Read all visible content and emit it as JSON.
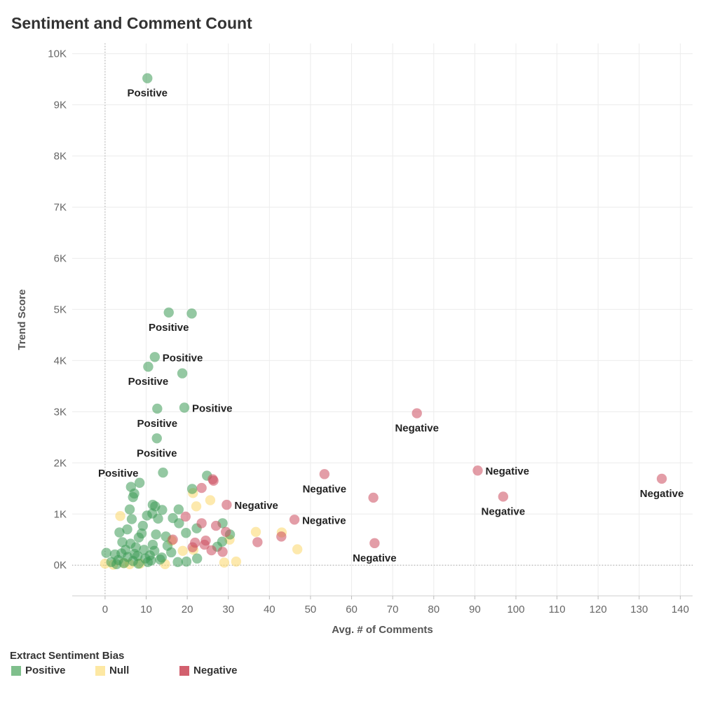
{
  "chart_data": {
    "type": "scatter",
    "title": "Sentiment and Comment Count",
    "xlabel": "Avg. # of Comments",
    "ylabel": "Trend Score",
    "xlim": [
      -8,
      143
    ],
    "ylim": [
      -600,
      10200
    ],
    "x_ticks": [
      0,
      10,
      20,
      30,
      40,
      50,
      60,
      70,
      80,
      90,
      100,
      110,
      120,
      130,
      140
    ],
    "y_ticks": [
      0,
      1000,
      2000,
      3000,
      4000,
      5000,
      6000,
      7000,
      8000,
      9000,
      10000
    ],
    "y_tick_labels": [
      "0K",
      "1K",
      "2K",
      "3K",
      "4K",
      "5K",
      "6K",
      "7K",
      "8K",
      "9K",
      "10K"
    ],
    "grid": true,
    "legend": {
      "title": "Extract Sentiment Bias",
      "position": "bottom-left",
      "items": [
        {
          "label": "Positive",
          "color": "#7fbf8c"
        },
        {
          "label": "Null",
          "color": "#fde8a3"
        },
        {
          "label": "Negative",
          "color": "#d2606e"
        }
      ]
    },
    "series": [
      {
        "name": "Positive",
        "color": "#3d9a55",
        "points": [
          [
            10.3,
            9520
          ],
          [
            15.5,
            4940
          ],
          [
            21.1,
            4920
          ],
          [
            12.1,
            4070
          ],
          [
            10.5,
            3880
          ],
          [
            18.8,
            3750
          ],
          [
            12.7,
            3060
          ],
          [
            19.3,
            3080
          ],
          [
            12.6,
            2480
          ],
          [
            14.1,
            1810
          ],
          [
            8.4,
            1610
          ],
          [
            6.3,
            1530
          ],
          [
            21.2,
            1490
          ],
          [
            24.8,
            1750
          ],
          [
            7.1,
            1400
          ],
          [
            6.8,
            1330
          ],
          [
            11.6,
            1180
          ],
          [
            12.2,
            1150
          ],
          [
            13.9,
            1080
          ],
          [
            17.9,
            1090
          ],
          [
            6.0,
            1090
          ],
          [
            11.5,
            1010
          ],
          [
            10.2,
            970
          ],
          [
            16.5,
            920
          ],
          [
            6.5,
            900
          ],
          [
            12.9,
            910
          ],
          [
            18.0,
            820
          ],
          [
            28.6,
            820
          ],
          [
            22.3,
            720
          ],
          [
            30.4,
            600
          ],
          [
            9.2,
            770
          ],
          [
            5.4,
            700
          ],
          [
            3.5,
            640
          ],
          [
            14.8,
            560
          ],
          [
            19.7,
            630
          ],
          [
            8.2,
            540
          ],
          [
            12.4,
            600
          ],
          [
            27.3,
            360
          ],
          [
            28.5,
            460
          ],
          [
            4.2,
            450
          ],
          [
            11.6,
            400
          ],
          [
            7.5,
            350
          ],
          [
            0.3,
            240
          ],
          [
            2.4,
            210
          ],
          [
            16.1,
            250
          ],
          [
            22.4,
            130
          ],
          [
            17.7,
            60
          ],
          [
            19.8,
            70
          ],
          [
            5.5,
            160
          ],
          [
            9.8,
            130
          ],
          [
            3.2,
            100
          ],
          [
            6.8,
            80
          ],
          [
            1.5,
            60
          ],
          [
            4.6,
            40
          ],
          [
            8.1,
            30
          ],
          [
            11.2,
            90
          ],
          [
            13.4,
            110
          ],
          [
            2.8,
            20
          ],
          [
            7.2,
            220
          ],
          [
            9.5,
            300
          ],
          [
            10.9,
            190
          ],
          [
            12.0,
            280
          ],
          [
            13.8,
            150
          ],
          [
            5.0,
            300
          ],
          [
            6.2,
            420
          ],
          [
            8.9,
            620
          ],
          [
            15.2,
            380
          ],
          [
            4.0,
            230
          ],
          [
            7.9,
            180
          ],
          [
            10.4,
            60
          ]
        ]
      },
      {
        "name": "Null",
        "color": "#fcd76a",
        "points": [
          [
            3.7,
            960
          ],
          [
            21.4,
            1410
          ],
          [
            25.6,
            1270
          ],
          [
            22.2,
            1150
          ],
          [
            36.7,
            650
          ],
          [
            43.0,
            640
          ],
          [
            30.3,
            500
          ],
          [
            46.8,
            310
          ],
          [
            31.9,
            70
          ],
          [
            29.0,
            50
          ],
          [
            21.5,
            300
          ],
          [
            18.9,
            280
          ],
          [
            0.0,
            30
          ],
          [
            2.0,
            10
          ],
          [
            4.5,
            40
          ],
          [
            6.0,
            20
          ],
          [
            8.5,
            30
          ],
          [
            14.6,
            20
          ],
          [
            16.2,
            480
          ]
        ]
      },
      {
        "name": "Negative",
        "color": "#cc4c5e",
        "points": [
          [
            75.9,
            2970
          ],
          [
            53.4,
            1780
          ],
          [
            90.7,
            1850
          ],
          [
            135.5,
            1690
          ],
          [
            65.3,
            1320
          ],
          [
            96.9,
            1340
          ],
          [
            29.6,
            1180
          ],
          [
            46.1,
            890
          ],
          [
            65.6,
            430
          ],
          [
            37.1,
            450
          ],
          [
            42.9,
            560
          ],
          [
            26.2,
            1680
          ],
          [
            26.4,
            1650
          ],
          [
            23.5,
            1510
          ],
          [
            19.6,
            950
          ],
          [
            23.5,
            820
          ],
          [
            27.0,
            770
          ],
          [
            29.4,
            650
          ],
          [
            24.5,
            480
          ],
          [
            16.5,
            500
          ],
          [
            21.9,
            440
          ],
          [
            25.9,
            290
          ],
          [
            28.6,
            260
          ],
          [
            21.3,
            350
          ],
          [
            24.2,
            400
          ]
        ]
      }
    ],
    "annotations": [
      {
        "text": "Positive",
        "x": 10.3,
        "y": 9520,
        "anchor": "below"
      },
      {
        "text": "Positive",
        "x": 15.5,
        "y": 4940,
        "anchor": "below"
      },
      {
        "text": "Positive",
        "x": 12.1,
        "y": 4070,
        "anchor": "right"
      },
      {
        "text": "Positive",
        "x": 10.5,
        "y": 3880,
        "anchor": "below"
      },
      {
        "text": "Positive",
        "x": 19.3,
        "y": 3080,
        "anchor": "right"
      },
      {
        "text": "Positive",
        "x": 12.7,
        "y": 3060,
        "anchor": "below"
      },
      {
        "text": "Positive",
        "x": 12.6,
        "y": 2480,
        "anchor": "below"
      },
      {
        "text": "Positive",
        "x": 14.1,
        "y": 1810,
        "anchor": "left"
      },
      {
        "text": "Negative",
        "x": 75.9,
        "y": 2970,
        "anchor": "below"
      },
      {
        "text": "Negative",
        "x": 90.7,
        "y": 1850,
        "anchor": "right"
      },
      {
        "text": "Negative",
        "x": 53.4,
        "y": 1780,
        "anchor": "below"
      },
      {
        "text": "Negative",
        "x": 135.5,
        "y": 1690,
        "anchor": "below"
      },
      {
        "text": "Negative",
        "x": 96.9,
        "y": 1340,
        "anchor": "below"
      },
      {
        "text": "Negative",
        "x": 29.6,
        "y": 1180,
        "anchor": "right"
      },
      {
        "text": "Negative",
        "x": 46.1,
        "y": 890,
        "anchor": "right"
      },
      {
        "text": "Negative",
        "x": 65.6,
        "y": 430,
        "anchor": "below"
      }
    ]
  }
}
